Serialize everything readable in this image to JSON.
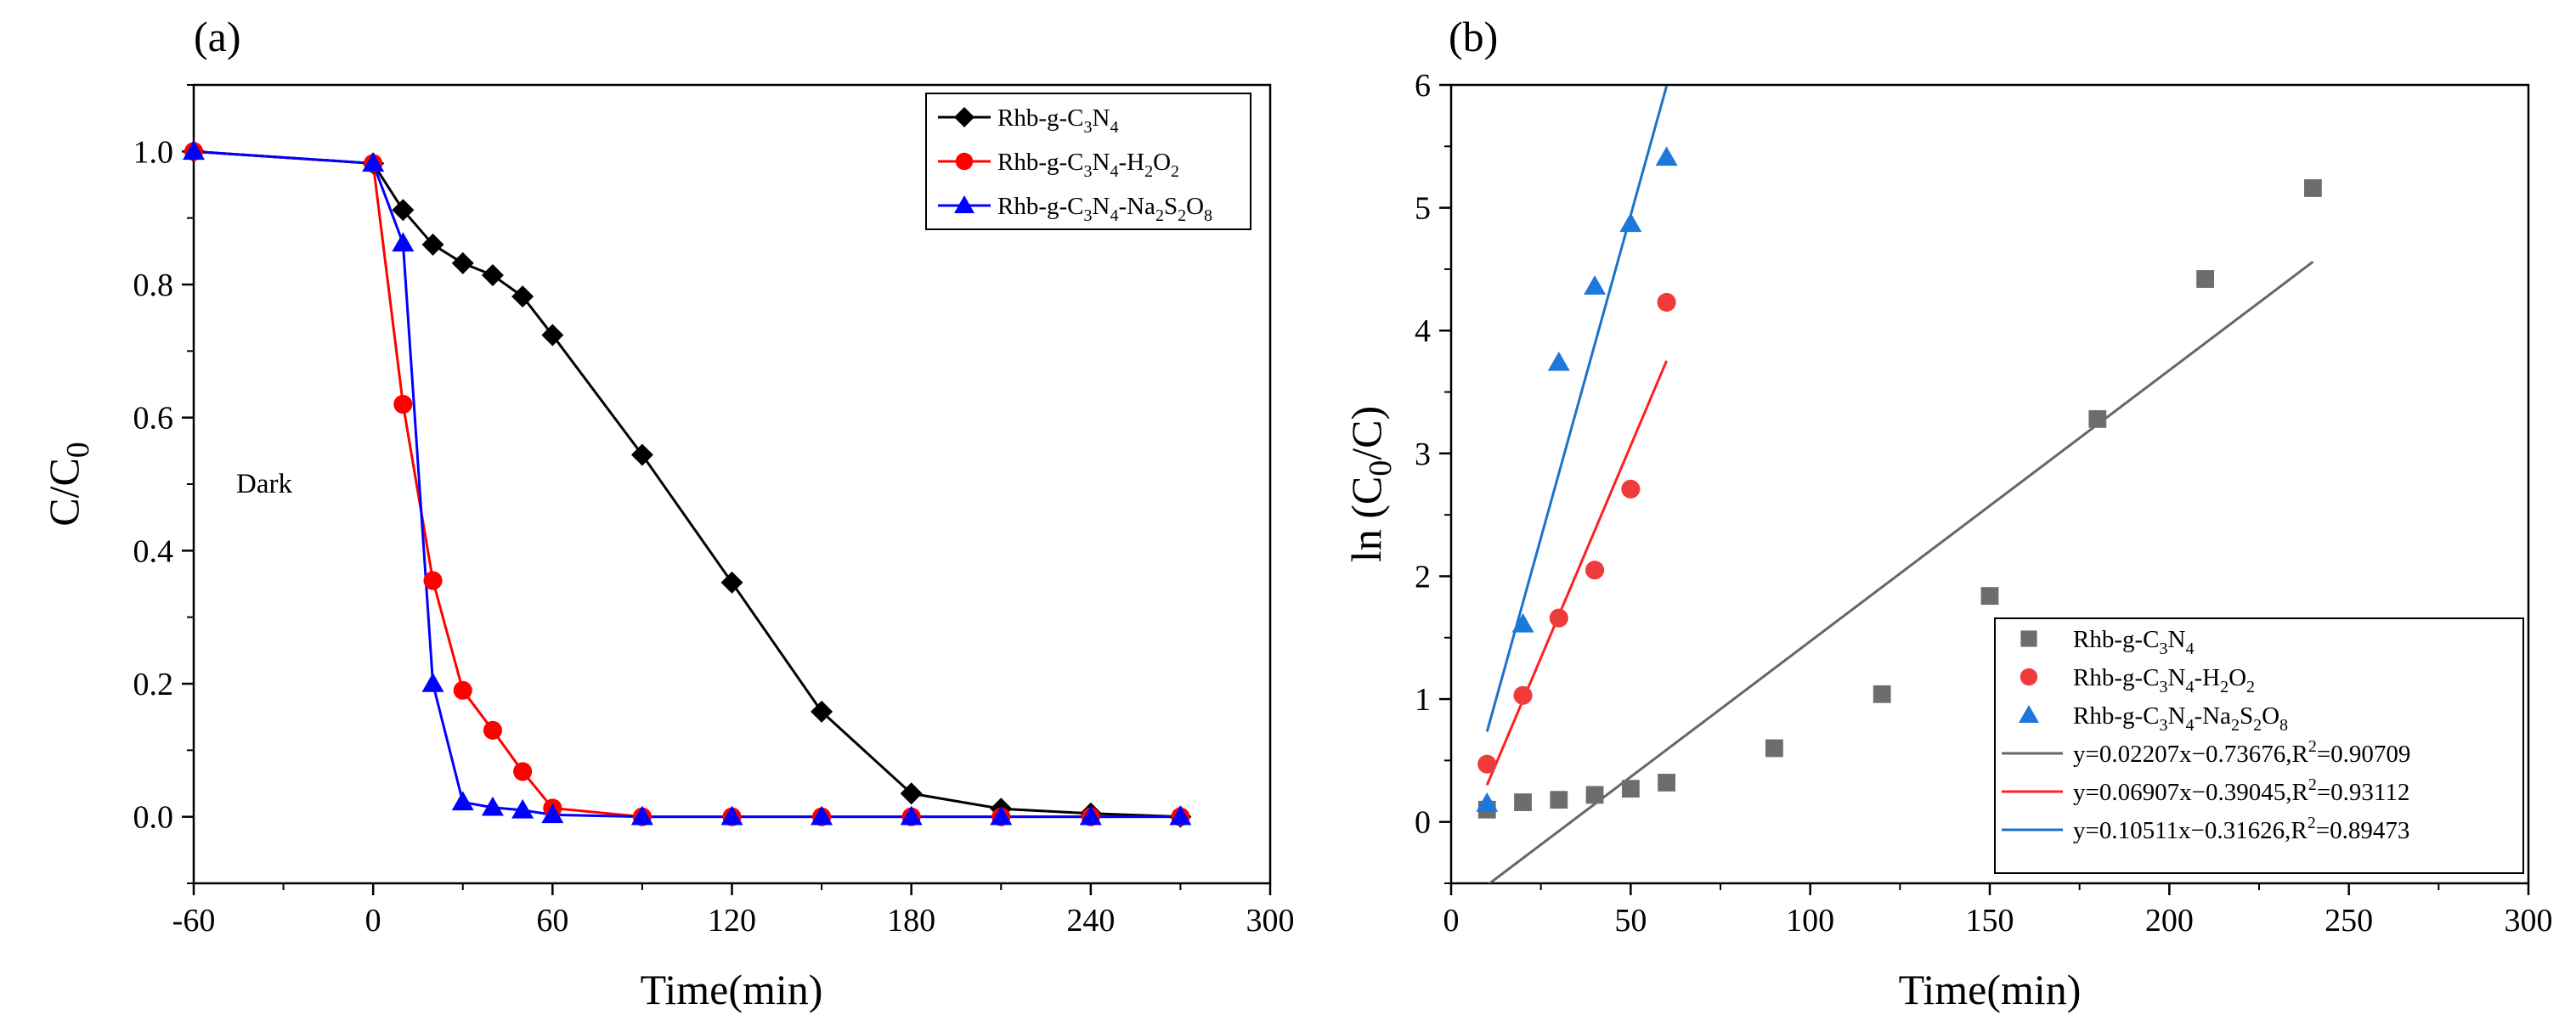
{
  "colors": {
    "black": "#000000",
    "red": "#ff0000",
    "blue": "#0000ff",
    "gray": "#6d6d6d",
    "red_b": "#f03b3b",
    "blue_b": "#1e78dc",
    "fit_gray": "#666666",
    "fit_red": "#ff2020",
    "fit_blue": "#1a73c8"
  },
  "chart_data": [
    {
      "panel_label": "(a)",
      "type": "line",
      "xlabel": "Time(min)",
      "ylabel": "C/C",
      "ylabel_sub": "0",
      "xlim": [
        -60,
        300
      ],
      "ylim": [
        -0.1,
        1.1
      ],
      "xticks": [
        "-60",
        "0",
        "60",
        "120",
        "180",
        "240",
        "300"
      ],
      "xtick_values": [
        -60,
        0,
        60,
        120,
        180,
        240,
        300
      ],
      "yticks": [
        "0.0",
        "0.2",
        "0.4",
        "0.6",
        "0.8",
        "1.0"
      ],
      "ytick_values": [
        0,
        0.2,
        0.4,
        0.6,
        0.8,
        1.0
      ],
      "annotation": "Dark",
      "legend_position": "top-right",
      "series": [
        {
          "name": "Rhb-g-C3N4",
          "legend_parts": [
            [
              "Rhb-g-C",
              ""
            ],
            [
              "3",
              "sub"
            ],
            [
              "N",
              ""
            ],
            [
              "4",
              "sub"
            ]
          ],
          "marker": "diamond",
          "color": "#000000",
          "x": [
            -60,
            0,
            10,
            20,
            30,
            40,
            50,
            60,
            90,
            120,
            150,
            180,
            210,
            240,
            270
          ],
          "y": [
            1.0,
            0.982,
            0.912,
            0.86,
            0.832,
            0.814,
            0.782,
            0.724,
            0.544,
            0.352,
            0.158,
            0.035,
            0.012,
            0.005,
            0.0
          ]
        },
        {
          "name": "Rhb-g-C3N4-H2O2",
          "legend_parts": [
            [
              "Rhb-g-C",
              ""
            ],
            [
              "3",
              "sub"
            ],
            [
              "N",
              ""
            ],
            [
              "4",
              "sub"
            ],
            [
              "-H",
              ""
            ],
            [
              "2",
              "sub"
            ],
            [
              "O",
              ""
            ],
            [
              "2",
              "sub"
            ]
          ],
          "marker": "circle",
          "color": "#ff0000",
          "x": [
            -60,
            0,
            10,
            20,
            30,
            40,
            50,
            60,
            90,
            120,
            150,
            180,
            210,
            240,
            270
          ],
          "y": [
            1.0,
            0.982,
            0.62,
            0.355,
            0.19,
            0.13,
            0.068,
            0.013,
            0.0,
            0.0,
            0.0,
            0.0,
            0.0,
            0.0,
            0.0
          ]
        },
        {
          "name": "Rhb-g-C3N4-Na2S2O8",
          "legend_parts": [
            [
              "Rhb-g-C",
              ""
            ],
            [
              "3",
              "sub"
            ],
            [
              "N",
              ""
            ],
            [
              "4",
              "sub"
            ],
            [
              "-Na",
              ""
            ],
            [
              "2",
              "sub"
            ],
            [
              "S",
              ""
            ],
            [
              "2",
              "sub"
            ],
            [
              "O",
              ""
            ],
            [
              "8",
              "sub"
            ]
          ],
          "marker": "triangle",
          "color": "#0000ff",
          "x": [
            -60,
            0,
            10,
            20,
            30,
            40,
            50,
            60,
            90,
            120,
            150,
            180,
            210,
            240,
            270
          ],
          "y": [
            1.0,
            0.982,
            0.862,
            0.2,
            0.022,
            0.014,
            0.01,
            0.003,
            0.0,
            0.0,
            0.0,
            0.0,
            0.0,
            0.0,
            0.0
          ]
        }
      ]
    },
    {
      "panel_label": "(b)",
      "type": "scatter",
      "xlabel": "Time(min)",
      "ylabel": "ln (C",
      "ylabel_sub": "0",
      "ylabel_end": "/C)",
      "xlim": [
        0,
        300
      ],
      "ylim": [
        -0.5,
        6
      ],
      "xticks": [
        "0",
        "50",
        "100",
        "150",
        "200",
        "250",
        "300"
      ],
      "xtick_values": [
        0,
        50,
        100,
        150,
        200,
        250,
        300
      ],
      "yticks": [
        "0",
        "1",
        "2",
        "3",
        "4",
        "5",
        "6"
      ],
      "ytick_values": [
        0,
        1,
        2,
        3,
        4,
        5,
        6
      ],
      "legend_position": "bottom-right",
      "series": [
        {
          "name": "Rhb-g-C3N4",
          "legend_parts": [
            [
              "Rhb-g-C",
              ""
            ],
            [
              "3",
              "sub"
            ],
            [
              "N",
              ""
            ],
            [
              "4",
              "sub"
            ]
          ],
          "marker": "square",
          "color": "#6d6d6d",
          "x": [
            10,
            20,
            30,
            40,
            50,
            60,
            90,
            120,
            150,
            180,
            210,
            240
          ],
          "y": [
            0.1,
            0.16,
            0.18,
            0.22,
            0.27,
            0.32,
            0.6,
            1.04,
            1.84,
            3.28,
            4.42,
            5.16
          ]
        },
        {
          "name": "Rhb-g-C3N4-H2O2",
          "legend_parts": [
            [
              "Rhb-g-C",
              ""
            ],
            [
              "3",
              "sub"
            ],
            [
              "N",
              ""
            ],
            [
              "4",
              "sub"
            ],
            [
              "-H",
              ""
            ],
            [
              "2",
              "sub"
            ],
            [
              "O",
              ""
            ],
            [
              "2",
              "sub"
            ]
          ],
          "marker": "circle",
          "color": "#f03b3b",
          "x": [
            10,
            20,
            30,
            40,
            50,
            60
          ],
          "y": [
            0.47,
            1.03,
            1.66,
            2.05,
            2.71,
            4.23
          ]
        },
        {
          "name": "Rhb-g-C3N4-Na2S2O8",
          "legend_parts": [
            [
              "Rhb-g-C",
              ""
            ],
            [
              "3",
              "sub"
            ],
            [
              "N",
              ""
            ],
            [
              "4",
              "sub"
            ],
            [
              "-Na",
              ""
            ],
            [
              "2",
              "sub"
            ],
            [
              "S",
              ""
            ],
            [
              "2",
              "sub"
            ],
            [
              "O",
              ""
            ],
            [
              "8",
              "sub"
            ]
          ],
          "marker": "triangle",
          "color": "#1e78dc",
          "x": [
            10,
            20,
            30,
            40,
            50,
            60
          ],
          "y": [
            0.15,
            1.61,
            3.74,
            4.36,
            4.87,
            5.41
          ]
        }
      ],
      "fits": [
        {
          "legend_parts": [
            [
              "y=0.02207x−0.73676,R",
              ""
            ],
            [
              "2",
              "sup"
            ],
            [
              "=0.90709",
              ""
            ]
          ],
          "slope": 0.02207,
          "intercept": -0.73676,
          "x_range": [
            10,
            240
          ],
          "color": "#666666"
        },
        {
          "legend_parts": [
            [
              "y=0.06907x−0.39045,R",
              ""
            ],
            [
              "2",
              "sup"
            ],
            [
              "=0.93112",
              ""
            ]
          ],
          "slope": 0.06907,
          "intercept": -0.39045,
          "x_range": [
            10,
            60
          ],
          "color": "#ff2020"
        },
        {
          "legend_parts": [
            [
              "y=0.10511x−0.31626,R",
              ""
            ],
            [
              "2",
              "sup"
            ],
            [
              "=0.89473",
              ""
            ]
          ],
          "slope": 0.10511,
          "intercept": -0.31626,
          "x_range": [
            10,
            60
          ],
          "color": "#1a73c8"
        }
      ]
    }
  ]
}
